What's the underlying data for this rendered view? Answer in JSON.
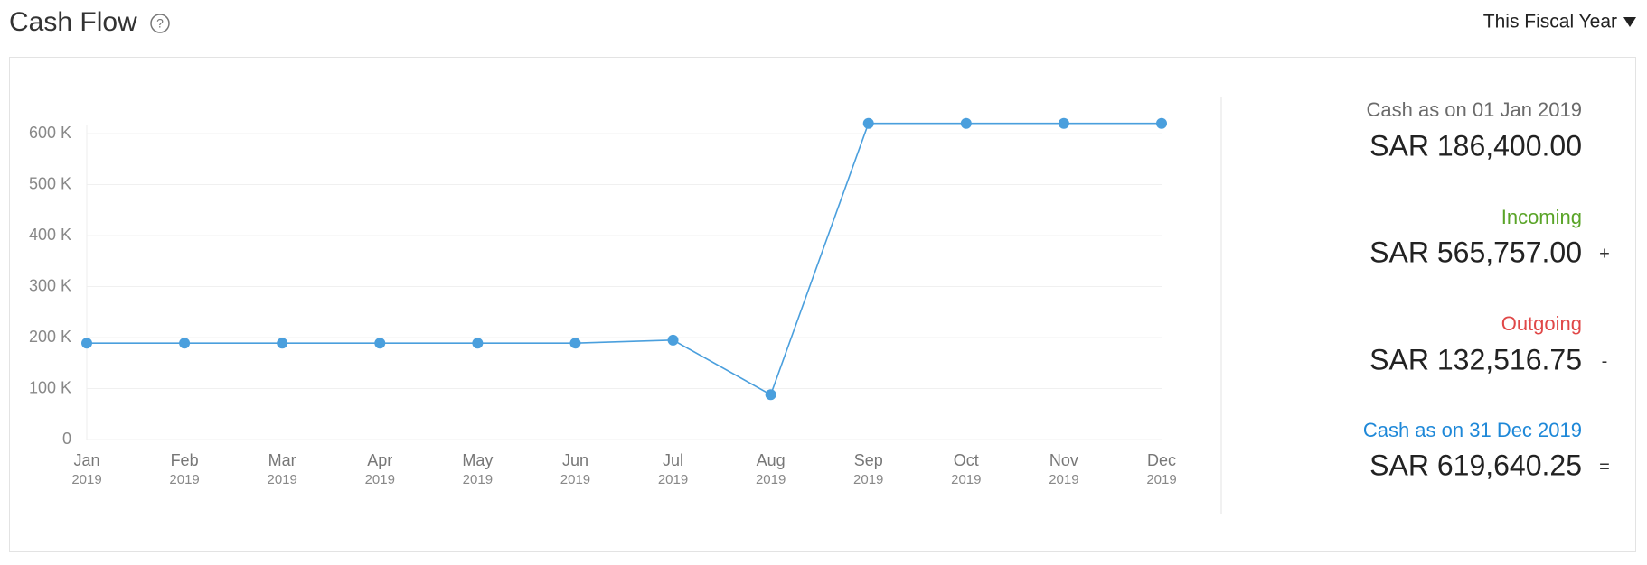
{
  "header": {
    "title": "Cash Flow",
    "help": "?",
    "period": "This Fiscal Year"
  },
  "chart_data": {
    "type": "line",
    "categories": [
      [
        "Jan",
        "2019"
      ],
      [
        "Feb",
        "2019"
      ],
      [
        "Mar",
        "2019"
      ],
      [
        "Apr",
        "2019"
      ],
      [
        "May",
        "2019"
      ],
      [
        "Jun",
        "2019"
      ],
      [
        "Jul",
        "2019"
      ],
      [
        "Aug",
        "2019"
      ],
      [
        "Sep",
        "2019"
      ],
      [
        "Oct",
        "2019"
      ],
      [
        "Nov",
        "2019"
      ],
      [
        "Dec",
        "2019"
      ]
    ],
    "series": [
      {
        "color": "#4a9fdd",
        "values": [
          189000,
          189000,
          189000,
          189000,
          189000,
          189000,
          195000,
          88000,
          620000,
          620000,
          620000,
          620000
        ]
      }
    ],
    "ylim": [
      0,
      600000
    ],
    "yticks": [
      0,
      {
        "value": 100000,
        "label": "100 K"
      },
      {
        "value": 200000,
        "label": "200 K"
      },
      {
        "value": 300000,
        "label": "300 K"
      },
      {
        "value": 400000,
        "label": "400 K"
      },
      {
        "value": 500000,
        "label": "500 K"
      },
      {
        "value": 600000,
        "label": "600 K"
      }
    ],
    "grid": true
  },
  "summary": [
    {
      "label": "Cash as on 01 Jan 2019",
      "value": "SAR 186,400.00",
      "sign": null,
      "color": "#6b6b6b"
    },
    {
      "label": "Incoming",
      "value": "SAR 565,757.00",
      "sign": "+",
      "color": "#5aa428"
    },
    {
      "label": "Outgoing",
      "value": "SAR 132,516.75",
      "sign": "-",
      "color": "#e04848"
    },
    {
      "label": "Cash as on 31 Dec 2019",
      "value": "SAR 619,640.25",
      "sign": "=",
      "color": "#1e88d8"
    }
  ]
}
